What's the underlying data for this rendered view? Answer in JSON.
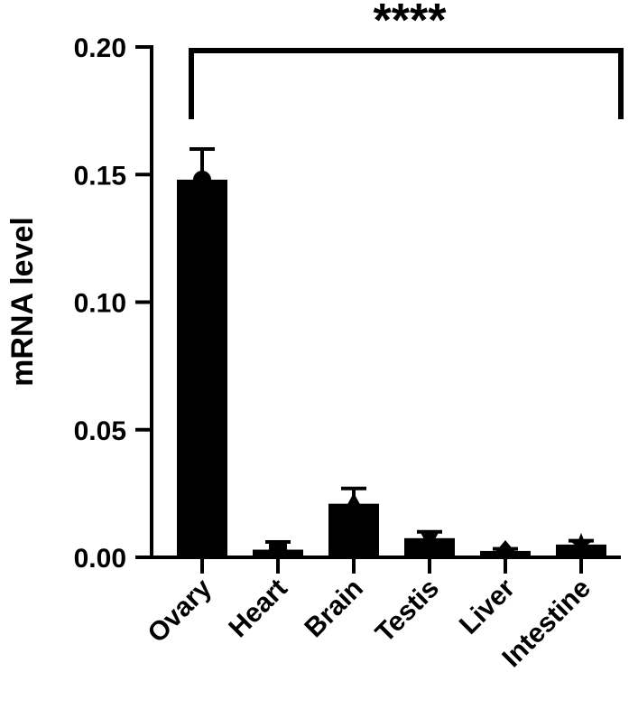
{
  "chart_data": {
    "type": "bar",
    "categories": [
      "Ovary",
      "Heart",
      "Brain",
      "Testis",
      "Liver",
      "Intestine"
    ],
    "values": [
      0.148,
      0.003,
      0.021,
      0.0075,
      0.0025,
      0.005
    ],
    "errors": [
      0.012,
      0.003,
      0.006,
      0.0025,
      0.0008,
      0.0015
    ],
    "point_markers": [
      "circle",
      "square",
      "triangle-up",
      "triangle-down",
      "diamond",
      "star"
    ],
    "ylabel": "mRNA level",
    "xlabel": "",
    "ylim": [
      0,
      0.2
    ],
    "yticks": [
      "0.00",
      "0.05",
      "0.10",
      "0.15",
      "0.20"
    ],
    "significance": {
      "label": "****",
      "from": "Ovary",
      "to": "Intestine"
    },
    "bar_color": "#000000",
    "grid": false
  }
}
